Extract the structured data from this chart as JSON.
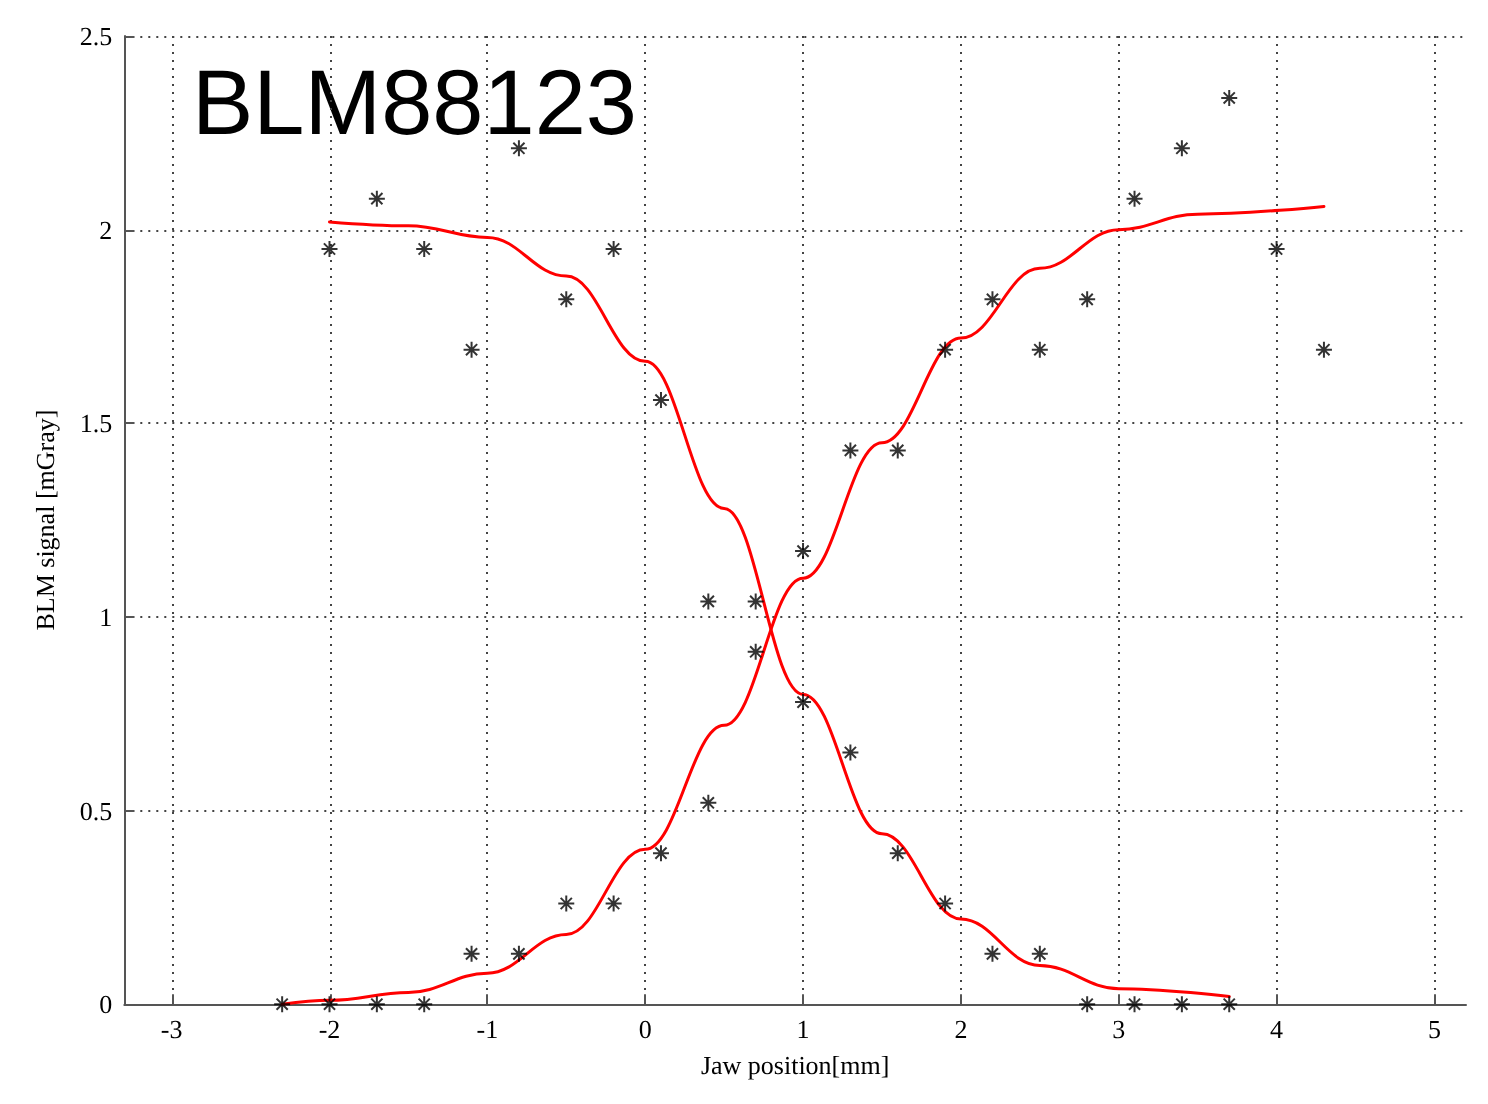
{
  "chart_data": {
    "type": "scatter",
    "xlabel": "Jaw position[mm]",
    "ylabel": "BLM signal [mGray]",
    "annotations": [
      "BLM88123"
    ],
    "xlim": [
      -3.3,
      5.2
    ],
    "xticks": [
      -3,
      -2,
      -1,
      0,
      1,
      2,
      3,
      4,
      5
    ],
    "ylim": [
      0,
      2.5
    ],
    "yticks": [
      0,
      0.5,
      1,
      1.5,
      2,
      2.5
    ],
    "grid": true,
    "marker": "cross",
    "series": [
      {
        "color": "#000000",
        "x": [
          -2.0,
          -1.7,
          -1.4,
          -1.1,
          -0.8,
          -0.5,
          -0.2,
          0.1,
          0.4,
          0.7,
          1.0,
          1.3,
          1.6,
          1.9,
          2.2,
          2.5,
          2.8,
          3.1,
          3.4,
          3.7
        ],
        "values": [
          1.95,
          2.08,
          1.95,
          1.69,
          2.21,
          1.82,
          1.95,
          1.56,
          1.04,
          1.04,
          0.78,
          0.65,
          0.39,
          0.26,
          0.13,
          0.13,
          0,
          0,
          0,
          0
        ]
      },
      {
        "color": "#000000",
        "x": [
          -2.3,
          -2.0,
          -1.7,
          -1.4,
          -1.1,
          -0.8,
          -0.5,
          -0.2,
          0.1,
          0.4,
          0.7,
          1.0,
          1.3,
          1.6,
          1.9,
          2.2,
          2.5,
          2.8,
          3.1,
          3.4,
          3.7,
          4.0,
          4.3
        ],
        "values": [
          0,
          0,
          0,
          0,
          0.13,
          0.13,
          0.26,
          0.26,
          0.39,
          0.52,
          0.91,
          1.17,
          1.43,
          1.43,
          1.69,
          1.82,
          1.69,
          1.82,
          2.08,
          2.21,
          2.34,
          1.95,
          1.69
        ]
      },
      {
        "type": "line",
        "color": "#ff0000",
        "marker": "none",
        "line_style": "solid",
        "x": [
          -2,
          -1.5,
          -1,
          -0.5,
          0,
          0.5,
          1,
          1.5,
          2,
          2.5,
          3,
          3.7
        ],
        "values": [
          2.02,
          2.01,
          1.98,
          1.88,
          1.66,
          1.28,
          0.8,
          0.44,
          0.22,
          0.1,
          0.04,
          0.02
        ]
      },
      {
        "type": "line",
        "color": "#ff0000",
        "marker": "none",
        "line_style": "solid",
        "x": [
          -2.3,
          -2,
          -1.5,
          -1,
          -0.5,
          0,
          0.5,
          1,
          1.5,
          2,
          2.5,
          3,
          3.5,
          4.3
        ],
        "values": [
          0,
          0.01,
          0.03,
          0.08,
          0.18,
          0.4,
          0.72,
          1.1,
          1.45,
          1.72,
          1.9,
          2.0,
          2.04,
          2.06
        ]
      }
    ]
  }
}
